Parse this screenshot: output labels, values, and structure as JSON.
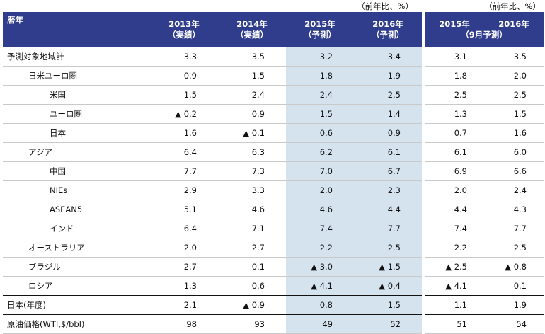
{
  "units": {
    "main": "（前年比、%）",
    "side": "（前年比、%）"
  },
  "header": {
    "label": "暦年",
    "main_cols": [
      {
        "line1": "2013年",
        "line2": "（実績）"
      },
      {
        "line1": "2014年",
        "line2": "（実績）"
      },
      {
        "line1": "2015年",
        "line2": "（予測）"
      },
      {
        "line1": "2016年",
        "line2": "（予測）"
      }
    ],
    "side_cols": [
      {
        "line1": "2015年",
        "line2": "（9月予測）"
      },
      {
        "line1": "2016年",
        "line2": ""
      }
    ]
  },
  "rows": [
    {
      "label": "予測対象地域計",
      "level": 0,
      "v": [
        "3.3",
        "3.5",
        "3.2",
        "3.4"
      ],
      "s": [
        "3.1",
        "3.5"
      ]
    },
    {
      "label": "日米ユーロ圏",
      "level": 1,
      "v": [
        "0.9",
        "1.5",
        "1.8",
        "1.9"
      ],
      "s": [
        "1.8",
        "2.0"
      ]
    },
    {
      "label": "米国",
      "level": 2,
      "v": [
        "1.5",
        "2.4",
        "2.4",
        "2.5"
      ],
      "s": [
        "2.5",
        "2.5"
      ]
    },
    {
      "label": "ユーロ圏",
      "level": 2,
      "v": [
        "▲ 0.2",
        "0.9",
        "1.5",
        "1.4"
      ],
      "s": [
        "1.3",
        "1.5"
      ]
    },
    {
      "label": "日本",
      "level": 2,
      "v": [
        "1.6",
        "▲ 0.1",
        "0.6",
        "0.9"
      ],
      "s": [
        "0.7",
        "1.6"
      ]
    },
    {
      "label": "アジア",
      "level": 1,
      "v": [
        "6.4",
        "6.3",
        "6.2",
        "6.1"
      ],
      "s": [
        "6.1",
        "6.0"
      ]
    },
    {
      "label": "中国",
      "level": 2,
      "v": [
        "7.7",
        "7.3",
        "7.0",
        "6.7"
      ],
      "s": [
        "6.9",
        "6.6"
      ]
    },
    {
      "label": "NIEs",
      "level": 2,
      "v": [
        "2.9",
        "3.3",
        "2.0",
        "2.3"
      ],
      "s": [
        "2.0",
        "2.4"
      ]
    },
    {
      "label": "ASEAN5",
      "level": 2,
      "v": [
        "5.1",
        "4.6",
        "4.6",
        "4.4"
      ],
      "s": [
        "4.4",
        "4.3"
      ]
    },
    {
      "label": "インド",
      "level": 2,
      "v": [
        "6.4",
        "7.1",
        "7.4",
        "7.7"
      ],
      "s": [
        "7.4",
        "7.7"
      ]
    },
    {
      "label": "オーストラリア",
      "level": 1,
      "v": [
        "2.0",
        "2.7",
        "2.2",
        "2.5"
      ],
      "s": [
        "2.2",
        "2.5"
      ]
    },
    {
      "label": "ブラジル",
      "level": 1,
      "v": [
        "2.7",
        "0.1",
        "▲ 3.0",
        "▲ 1.5"
      ],
      "s": [
        "▲ 2.5",
        "▲ 0.8"
      ]
    },
    {
      "label": "ロシア",
      "level": 1,
      "v": [
        "1.3",
        "0.6",
        "▲ 4.1",
        "▲ 0.4"
      ],
      "s": [
        "▲ 4.1",
        "0.1"
      ]
    },
    {
      "label": "日本(年度)",
      "level": 0,
      "v": [
        "2.1",
        "▲ 0.9",
        "0.8",
        "1.5"
      ],
      "s": [
        "1.1",
        "1.9"
      ]
    },
    {
      "label": "原油価格(WTI,$/bbl)",
      "level": 0,
      "v": [
        "98",
        "93",
        "49",
        "52"
      ],
      "s": [
        "51",
        "54"
      ]
    }
  ],
  "colors": {
    "header_bg": "#2f3d8c",
    "forecast_bg": "#d5e3ef"
  }
}
